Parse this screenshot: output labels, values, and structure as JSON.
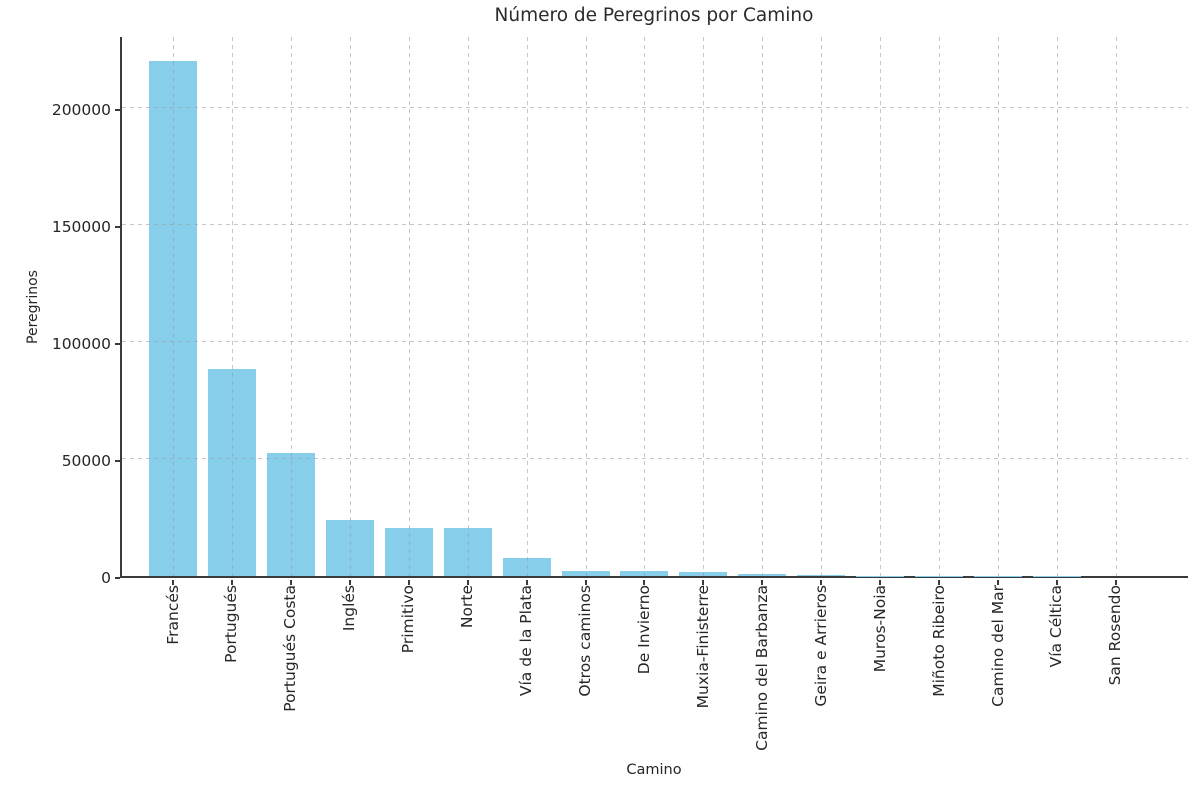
{
  "chart_data": {
    "type": "bar",
    "title": "Número de Peregrinos por Camino",
    "xlabel": "Camino",
    "ylabel": "Peregrinos",
    "categories": [
      "Francés",
      "Portugués",
      "Portugués Costa",
      "Inglés",
      "Primitivo",
      "Norte",
      "Vía de la Plata",
      "Otros caminos",
      "De Invierno",
      "Muxia-Finisterre",
      "Camino del Barbanza",
      "Geira e Arrieros",
      "Muros-Noia",
      "Miñoto Ribeiro",
      "Camino del Mar",
      "Vía Céltica",
      "San Rosendo"
    ],
    "values": [
      220000,
      88500,
      52500,
      23900,
      20500,
      20600,
      7500,
      2000,
      2100,
      1900,
      1000,
      400,
      150,
      120,
      90,
      60,
      30
    ],
    "yticks": [
      0,
      50000,
      100000,
      150000,
      200000
    ],
    "ytick_labels": [
      "0",
      "50000",
      "100000",
      "150000",
      "200000"
    ],
    "ylim": [
      0,
      231000
    ],
    "grid": true,
    "grid_style": "dashed",
    "legend": false,
    "bar_color": "#87CEEB",
    "grid_color": "#cccccc",
    "spine_color": "#3a3a3a",
    "text_color": "#262626",
    "background": "#ffffff"
  }
}
